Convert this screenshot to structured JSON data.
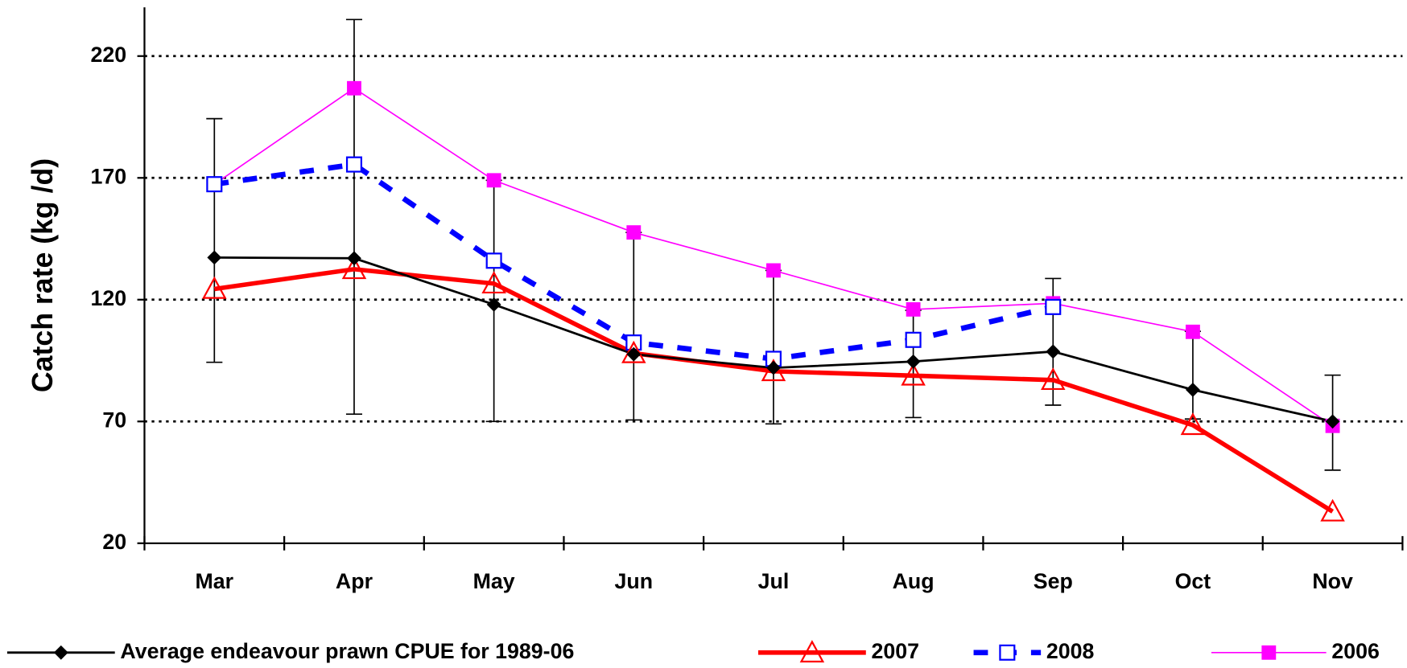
{
  "chart_data": {
    "type": "line",
    "y_label": "Catch rate (kg /d)",
    "categories": [
      "Mar",
      "Apr",
      "May",
      "Jun",
      "Jul",
      "Aug",
      "Sep",
      "Oct",
      "Nov"
    ],
    "ylim": [
      20,
      240
    ],
    "yticks": [
      20,
      70,
      120,
      170,
      220
    ],
    "grid": true,
    "legend": "bottom",
    "series": [
      {
        "name": "Average endeavour prawn CPUE for 1989-06",
        "color": "#000000",
        "marker": "diamond",
        "dash": "solid",
        "values": [
          137.3,
          137,
          118,
          97.6,
          92,
          94.6,
          98.7,
          83,
          70
        ],
        "error_plus": [
          57,
          98,
          51,
          50,
          40,
          21,
          30,
          24,
          19
        ],
        "error_minus": [
          43,
          64,
          48,
          27,
          23,
          23,
          22,
          12,
          20
        ]
      },
      {
        "name": "2007",
        "color": "#ff0000",
        "marker": "triangle",
        "dash": "solid",
        "values": [
          124.4,
          132.5,
          126.6,
          98,
          90.6,
          88.8,
          87,
          68.5,
          33
        ]
      },
      {
        "name": "2008",
        "color": "#0000ff",
        "marker": "square-open",
        "dash": "dashed",
        "values": [
          167.4,
          175.5,
          136,
          102.4,
          95.7,
          103.5,
          117,
          null,
          null
        ]
      },
      {
        "name": "2006",
        "color": "#ff00ff",
        "marker": "square",
        "dash": "thin",
        "values": [
          167.4,
          206.8,
          169,
          147.6,
          132,
          116,
          118.5,
          106.8,
          68.2
        ]
      }
    ]
  }
}
